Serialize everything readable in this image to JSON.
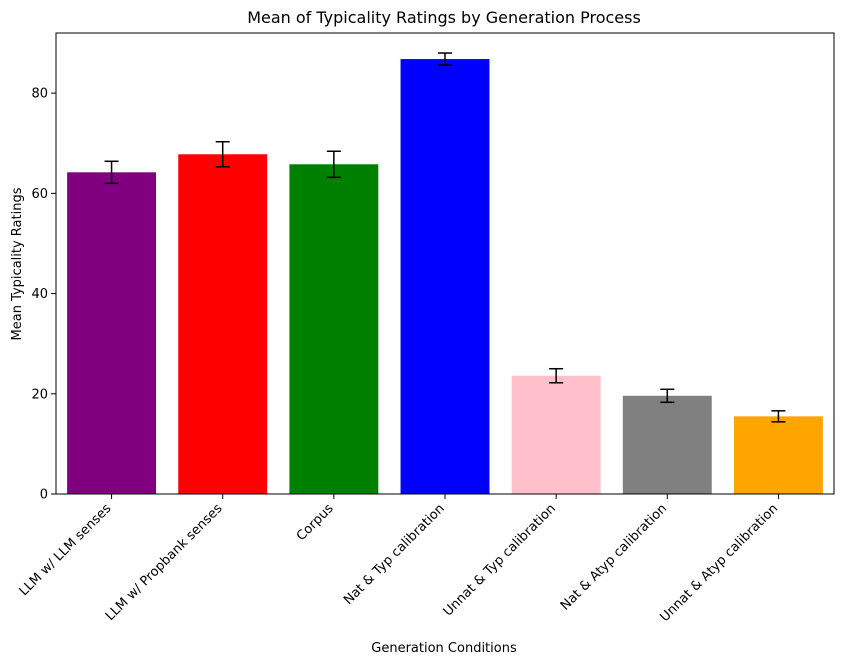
{
  "chart_data": {
    "type": "bar",
    "title": "Mean of Typicality Ratings by Generation Process",
    "xlabel": "Generation Conditions",
    "ylabel": "Mean Typicality Ratings",
    "ylim": [
      0,
      92
    ],
    "yticks": [
      0,
      20,
      40,
      60,
      80
    ],
    "grid": false,
    "legend": "none",
    "categories": [
      "LLM w/ LLM senses",
      "LLM w/ Propbank senses",
      "Corpus",
      "Nat & Typ calibration",
      "Unnat & Typ calibration",
      "Nat & Atyp calibration",
      "Unnat & Atyp calibration"
    ],
    "values": [
      64.2,
      67.8,
      65.8,
      86.8,
      23.6,
      19.6,
      15.5
    ],
    "errors": [
      2.2,
      2.5,
      2.6,
      1.2,
      1.4,
      1.3,
      1.1
    ],
    "colors": [
      "#800080",
      "#ff0000",
      "#008000",
      "#0000ff",
      "#ffc0cb",
      "#808080",
      "#ffa500"
    ]
  }
}
